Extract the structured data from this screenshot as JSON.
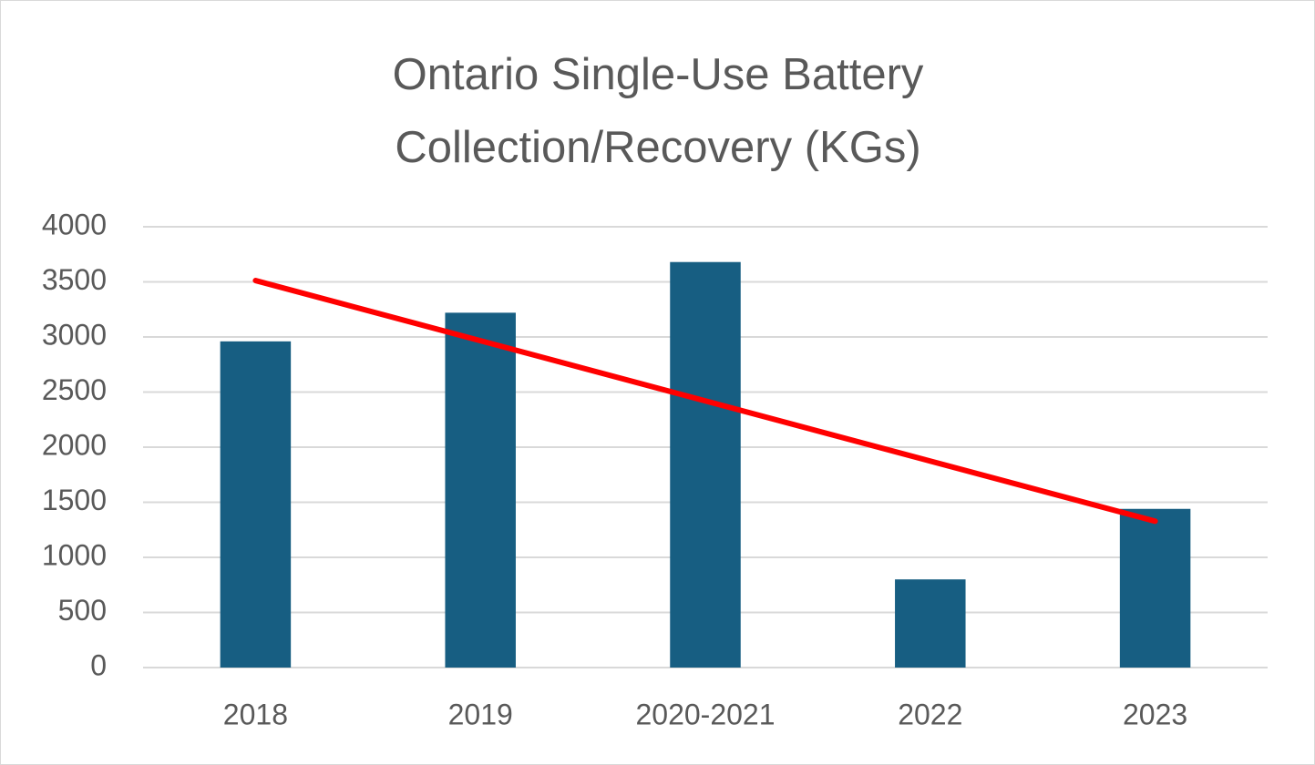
{
  "chart_data": {
    "type": "bar",
    "title": "Ontario Single-Use Battery Collection/Recovery (KGs)",
    "categories": [
      "2018",
      "2019",
      "2020-2021",
      "2022",
      "2023"
    ],
    "values": [
      2960,
      3220,
      3680,
      800,
      1440
    ],
    "color": "#175e82",
    "ylim": [
      0,
      4000
    ],
    "yticks": [
      0,
      500,
      1000,
      1500,
      2000,
      2500,
      3000,
      3500,
      4000
    ],
    "grid": true,
    "trendline": {
      "color": "#ff0000",
      "start": 3512,
      "end": 1328
    }
  }
}
